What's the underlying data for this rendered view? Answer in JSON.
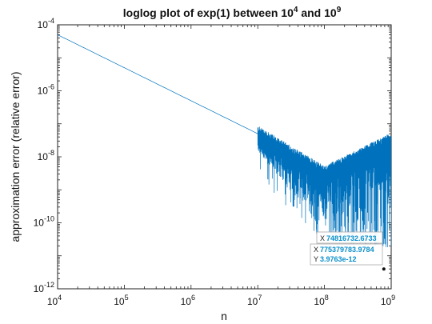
{
  "chart_data": {
    "type": "line",
    "title_main": "loglog plot of exp(1) between 10",
    "title_exp1": "4",
    "title_mid": " and 10",
    "title_exp2": "9",
    "xlabel": "n",
    "ylabel": "approximation error (relative error)",
    "xscale": "log",
    "yscale": "log",
    "xlim": [
      10000,
      1000000000
    ],
    "ylim": [
      1e-12,
      0.0001
    ],
    "grid": false,
    "x_ticks": [
      {
        "base": "10",
        "exp": "4"
      },
      {
        "base": "10",
        "exp": "5"
      },
      {
        "base": "10",
        "exp": "6"
      },
      {
        "base": "10",
        "exp": "7"
      },
      {
        "base": "10",
        "exp": "8"
      },
      {
        "base": "10",
        "exp": "9"
      }
    ],
    "y_ticks": [
      {
        "base": "10",
        "exp": "-12"
      },
      {
        "base": "10",
        "exp": "-10"
      },
      {
        "base": "10",
        "exp": "-8"
      },
      {
        "base": "10",
        "exp": "-6"
      },
      {
        "base": "10",
        "exp": "-4"
      }
    ],
    "series": [
      {
        "color": "#0072bd",
        "trend_x": [
          10000,
          10000000,
          100000000,
          1000000000
        ],
        "trend_y": [
          5e-05,
          5e-08,
          3e-09,
          3e-08
        ],
        "noise_region_x": [
          10000000,
          1000000000
        ],
        "noise_lower_y": 1e-11
      }
    ],
    "datatips": [
      {
        "x_key": "X",
        "x_value": "74816732.6733"
      },
      {
        "x_key": "X",
        "x_value": "775379783.9784",
        "y_key": "Y",
        "y_value": "3.9763e-12",
        "point_x": 775379783.9784,
        "point_y": 3.9763e-12
      }
    ],
    "datatip_value_color": "#0a8fc9"
  }
}
